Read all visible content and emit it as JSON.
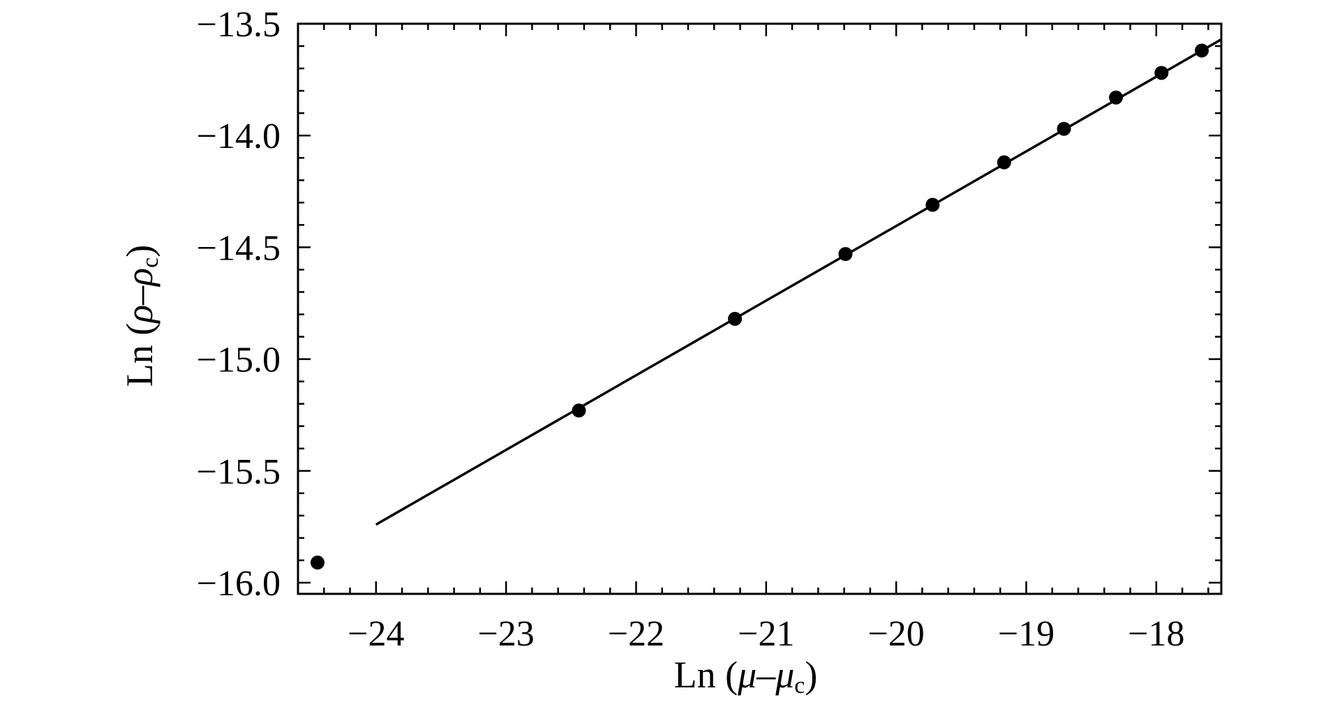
{
  "chart_data": {
    "type": "scatter",
    "title": "",
    "xlabel": {
      "prefix": "Ln (",
      "var": "μ",
      "minus": "–",
      "var2": "μ",
      "sub": "c",
      "suffix": ")"
    },
    "ylabel": {
      "prefix": "Ln (",
      "var": "ρ",
      "minus": "–",
      "var2": "ρ",
      "sub": "c",
      "suffix": ")"
    },
    "xlim": [
      -24.6,
      -17.5
    ],
    "ylim": [
      -16.05,
      -13.5
    ],
    "x_ticks": [
      -24,
      -23,
      -22,
      -21,
      -20,
      -19,
      -18
    ],
    "x_tick_labels": [
      "−24",
      "−23",
      "−22",
      "−21",
      "−20",
      "−19",
      "−18"
    ],
    "y_ticks": [
      -16.0,
      -15.5,
      -15.0,
      -14.5,
      -14.0,
      -13.5
    ],
    "y_tick_labels": [
      "−16.0",
      "−15.5",
      "−15.0",
      "−14.5",
      "−14.0",
      "−13.5"
    ],
    "grid": false,
    "series": [
      {
        "type": "scatter",
        "color": "#000000",
        "points": [
          {
            "x": -24.45,
            "y": -15.91
          },
          {
            "x": -22.44,
            "y": -15.23
          },
          {
            "x": -21.24,
            "y": -14.82
          },
          {
            "x": -20.39,
            "y": -14.53
          },
          {
            "x": -19.72,
            "y": -14.31
          },
          {
            "x": -19.17,
            "y": -14.12
          },
          {
            "x": -18.71,
            "y": -13.97
          },
          {
            "x": -18.31,
            "y": -13.83
          },
          {
            "x": -17.96,
            "y": -13.72
          },
          {
            "x": -17.65,
            "y": -13.62
          }
        ]
      },
      {
        "type": "line",
        "color": "#000000",
        "points": [
          {
            "x": -24.0,
            "y": -15.74
          },
          {
            "x": -17.5,
            "y": -13.57
          }
        ]
      }
    ]
  }
}
